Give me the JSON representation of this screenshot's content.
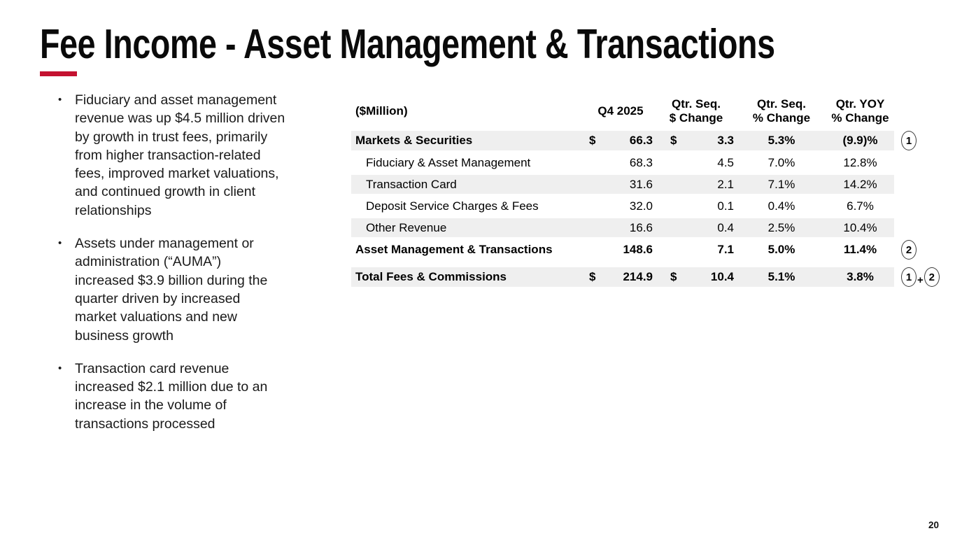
{
  "slide": {
    "title": "Fee Income - Asset Management & Transactions",
    "page_number": "20",
    "accent_color": "#C41230",
    "row_shade_color": "#efefef"
  },
  "bullets": [
    {
      "text": "Fiduciary and asset management revenue was up $4.5 million driven by growth in trust fees, primarily from higher transaction-related fees, improved market valuations, and continued growth in client relationships",
      "lines": [
        "Fiduciary and asset management",
        "revenue was up $4.5 million driven",
        "by growth in trust fees, primarily",
        "from higher transaction-related",
        "fees, improved market valuations,",
        "and continued growth in client",
        "relationships"
      ]
    },
    {
      "text": "Assets under management or administration (“AUMA”) increased $3.9 billion during the quarter driven by increased market valuations and new business growth",
      "lines": [
        "Assets under management or",
        "administration (“AUMA”)",
        "increased $3.9 billion during the",
        "quarter driven by increased",
        "market valuations and new",
        "business growth"
      ]
    },
    {
      "text": "Transaction card revenue increased $2.1 million due to an increase in the volume of transactions processed",
      "lines": [
        "Transaction card revenue",
        "increased $2.1 million due to an",
        "increase in the volume of",
        "transactions processed"
      ]
    }
  ],
  "table": {
    "unit_label": "($Million)",
    "columns": [
      {
        "lines": [
          "Q4 2025"
        ]
      },
      {
        "lines": [
          "Qtr. Seq.",
          "$ Change"
        ]
      },
      {
        "lines": [
          "Qtr. Seq.",
          "% Change"
        ]
      },
      {
        "lines": [
          "Qtr. YOY",
          "% Change"
        ]
      }
    ],
    "rows": [
      {
        "label": "Markets & Securities",
        "bold": true,
        "indent": false,
        "shaded": true,
        "gap_before": false,
        "d1": "$",
        "v1": "66.3",
        "d2": "$",
        "v2": "3.3",
        "pct_seq": "5.3%",
        "pct_yoy": "(9.9)%",
        "note": "1"
      },
      {
        "label": "Fiduciary & Asset Management",
        "bold": false,
        "indent": true,
        "shaded": false,
        "gap_before": false,
        "d1": "",
        "v1": "68.3",
        "d2": "",
        "v2": "4.5",
        "pct_seq": "7.0%",
        "pct_yoy": "12.8%",
        "note": ""
      },
      {
        "label": "Transaction Card",
        "bold": false,
        "indent": true,
        "shaded": true,
        "gap_before": false,
        "d1": "",
        "v1": "31.6",
        "d2": "",
        "v2": "2.1",
        "pct_seq": "7.1%",
        "pct_yoy": "14.2%",
        "note": ""
      },
      {
        "label": "Deposit Service Charges & Fees",
        "bold": false,
        "indent": true,
        "shaded": false,
        "gap_before": false,
        "d1": "",
        "v1": "32.0",
        "d2": "",
        "v2": "0.1",
        "pct_seq": "0.4%",
        "pct_yoy": "6.7%",
        "note": ""
      },
      {
        "label": "Other Revenue",
        "bold": false,
        "indent": true,
        "shaded": true,
        "gap_before": false,
        "d1": "",
        "v1": "16.6",
        "d2": "",
        "v2": "0.4",
        "pct_seq": "2.5%",
        "pct_yoy": "10.4%",
        "note": ""
      },
      {
        "label": "Asset Management & Transactions",
        "bold": true,
        "indent": false,
        "shaded": false,
        "gap_before": false,
        "d1": "",
        "v1": "148.6",
        "d2": "",
        "v2": "7.1",
        "pct_seq": "5.0%",
        "pct_yoy": "11.4%",
        "note": "2"
      },
      {
        "label": "Total Fees & Commissions",
        "bold": true,
        "indent": false,
        "shaded": true,
        "gap_before": true,
        "d1": "$",
        "v1": "214.9",
        "d2": "$",
        "v2": "10.4",
        "pct_seq": "5.1%",
        "pct_yoy": "3.8%",
        "note": "1+2"
      }
    ]
  }
}
